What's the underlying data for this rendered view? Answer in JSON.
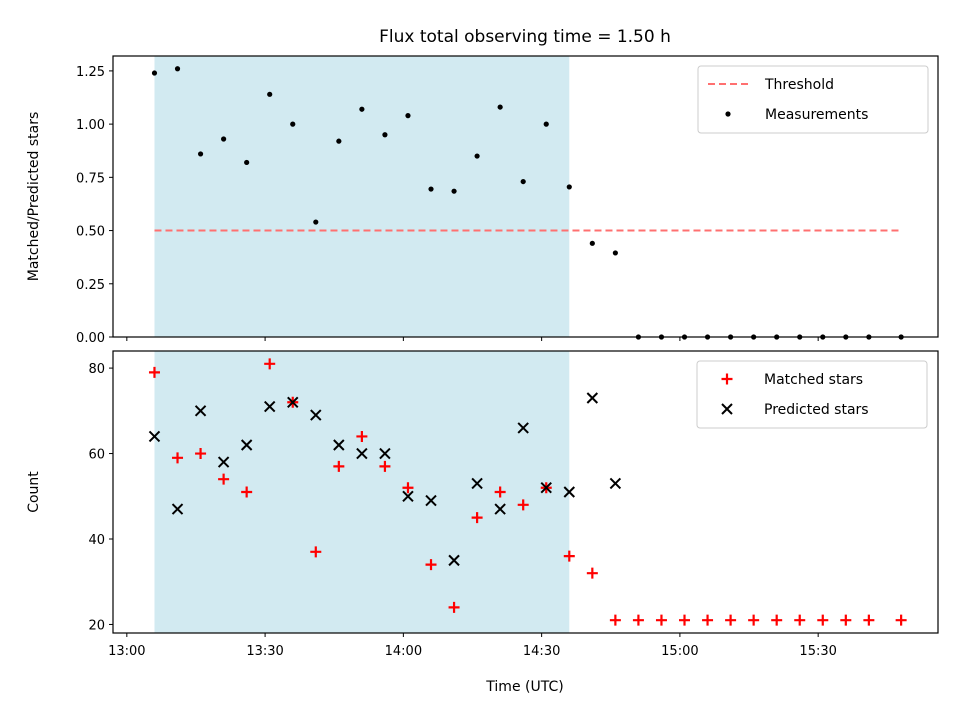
{
  "chart_data": {
    "title": "Flux total observing time = 1.50 h",
    "xlabel": "Time (UTC)",
    "x_ticks": [
      {
        "minutes": 0,
        "label": "13:00"
      },
      {
        "minutes": 30,
        "label": "13:30"
      },
      {
        "minutes": 60,
        "label": "14:00"
      },
      {
        "minutes": 90,
        "label": "14:30"
      },
      {
        "minutes": 120,
        "label": "15:00"
      },
      {
        "minutes": 150,
        "label": "15:30"
      }
    ],
    "x_unit": "minutes after 13:00 UTC",
    "xlim": [
      -3,
      176
    ],
    "shaded_interval": [
      6,
      96
    ],
    "shade_color": "#add8e6",
    "panels": [
      {
        "type": "scatter",
        "ylabel": "Matched/Predicted stars",
        "ylim": [
          0,
          1.32
        ],
        "y_ticks": [
          {
            "value": 0.0,
            "label": "0.00"
          },
          {
            "value": 0.25,
            "label": "0.25"
          },
          {
            "value": 0.5,
            "label": "0.50"
          },
          {
            "value": 0.75,
            "label": "0.75"
          },
          {
            "value": 1.0,
            "label": "1.00"
          },
          {
            "value": 1.25,
            "label": "1.25"
          }
        ],
        "threshold": {
          "name": "Threshold",
          "value": 0.5,
          "x_range": [
            6,
            168
          ],
          "color": "#ff7070"
        },
        "legend": {
          "position": "top-right",
          "entries": [
            "Threshold",
            "Measurements"
          ]
        },
        "series": [
          {
            "name": "Measurements",
            "color": "#000000",
            "x": [
              6,
              11,
              16,
              21,
              26,
              31,
              36,
              41,
              46,
              51,
              56,
              61,
              66,
              71,
              76,
              81,
              86,
              91,
              96,
              101,
              106,
              111,
              116,
              121,
              126,
              131,
              136,
              141,
              146,
              151,
              156,
              161,
              168
            ],
            "y": [
              1.24,
              1.26,
              0.86,
              0.93,
              0.82,
              1.14,
              1.0,
              0.54,
              0.92,
              1.07,
              0.95,
              1.04,
              0.695,
              0.685,
              0.85,
              1.08,
              0.73,
              1.0,
              0.705,
              0.44,
              0.395,
              0,
              0,
              0,
              0,
              0,
              0,
              0,
              0,
              0,
              0,
              0,
              0
            ]
          }
        ]
      },
      {
        "type": "scatter",
        "ylabel": "Count",
        "ylim": [
          18,
          84
        ],
        "y_ticks": [
          {
            "value": 20,
            "label": "20"
          },
          {
            "value": 40,
            "label": "40"
          },
          {
            "value": 60,
            "label": "60"
          },
          {
            "value": 80,
            "label": "80"
          }
        ],
        "legend": {
          "position": "top-right",
          "entries": [
            "Matched stars",
            "Predicted stars"
          ]
        },
        "series": [
          {
            "name": "Matched stars",
            "marker": "plus",
            "color": "#ff0000",
            "x": [
              6,
              11,
              16,
              21,
              26,
              31,
              36,
              41,
              46,
              51,
              56,
              61,
              66,
              71,
              76,
              81,
              86,
              91,
              96,
              101,
              106,
              111,
              116,
              121,
              126,
              131,
              136,
              141,
              146,
              151,
              156,
              161,
              168
            ],
            "y": [
              79,
              59,
              60,
              54,
              51,
              81,
              72,
              37,
              57,
              64,
              57,
              52,
              34,
              24,
              45,
              51,
              48,
              52,
              36,
              32,
              21,
              21,
              21,
              21,
              21,
              21,
              21,
              21,
              21,
              21,
              21,
              21,
              21
            ]
          },
          {
            "name": "Predicted stars",
            "marker": "x",
            "color": "#000000",
            "x": [
              6,
              11,
              16,
              21,
              26,
              31,
              36,
              41,
              46,
              51,
              56,
              61,
              66,
              71,
              76,
              81,
              86,
              91,
              96,
              101,
              106
            ],
            "y": [
              64,
              47,
              70,
              58,
              62,
              71,
              72,
              69,
              62,
              60,
              60,
              50,
              49,
              35,
              53,
              47,
              66,
              52,
              51,
              73,
              53
            ]
          }
        ]
      }
    ]
  }
}
